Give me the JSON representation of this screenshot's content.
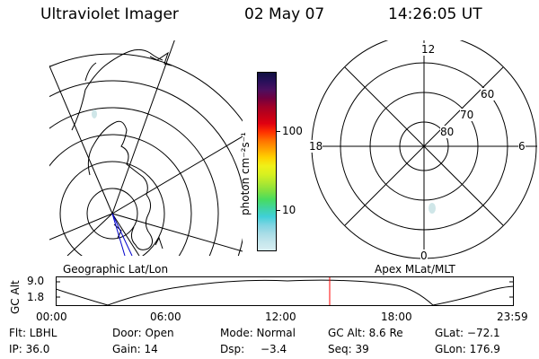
{
  "header": {
    "instrument": "Ultraviolet Imager",
    "date": "02 May 07",
    "time": "14:26:05 UT"
  },
  "geo_panel": {
    "label": "Geographic Lat/Lon"
  },
  "mag_panel": {
    "label": "Apex MLat/MLT",
    "mlt_labels": [
      "12",
      "18",
      "6",
      "0"
    ],
    "lat_labels": [
      "60",
      "70",
      "80"
    ]
  },
  "colorbar": {
    "unit_label": "photon cm⁻²s⁻¹",
    "ticks": [
      "100",
      "10"
    ],
    "colors": [
      "#d8eef2",
      "#c4e6ec",
      "#a8dce6",
      "#7ed4e2",
      "#40d0d8",
      "#40d4a0",
      "#48dc60",
      "#80e040",
      "#b0e830",
      "#d8f020",
      "#f0f018",
      "#ffd000",
      "#ffa000",
      "#ff7000",
      "#ff3000",
      "#e00010",
      "#c00018",
      "#a00028",
      "#700040",
      "#4a1060",
      "#28105a",
      "#101040"
    ]
  },
  "altitude_plot": {
    "y_axis_label": "GC Alt",
    "y_ticks": [
      "9.0",
      "1.8"
    ],
    "x_ticks": [
      "00:00",
      "06:00",
      "12:00",
      "18:00",
      "23:59"
    ]
  },
  "info": {
    "row1": {
      "filter": "Flt: LBHL",
      "door": "Door: Open",
      "mode": "Mode: Normal",
      "gc_alt": "GC Alt: 8.6 Re",
      "glat": "GLat: −72.1"
    },
    "row2": {
      "ip": "IP: 36.0",
      "gain": "Gain: 14",
      "dsp_label": "Dsp:",
      "dsp_value": "−3.4",
      "seq": "Seq: 39",
      "glon": "GLon: 176.9"
    }
  },
  "colors": {
    "foreground": "#000000",
    "current_time_marker": "#ff0000",
    "track_line": "#0000cc"
  }
}
